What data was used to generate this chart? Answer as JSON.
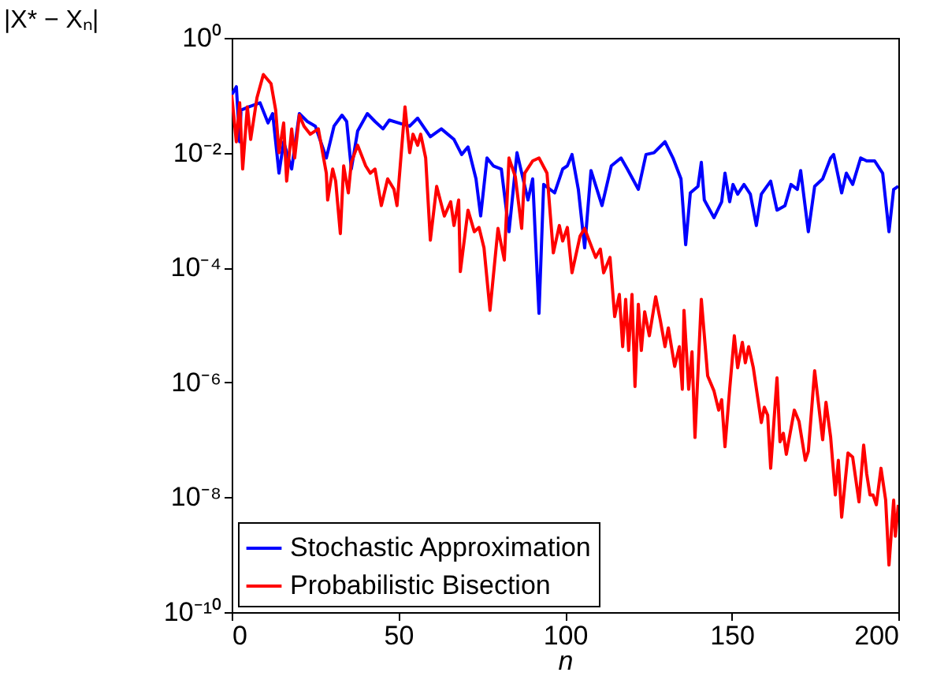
{
  "chart_data": {
    "type": "line",
    "xlabel": "n",
    "ylabel": "|X* − Xₙ|",
    "log": "y",
    "xlim": [
      0,
      200
    ],
    "xticks": [
      0,
      50,
      100,
      150,
      200
    ],
    "ylim": [
      1e-10,
      1
    ],
    "yticks": [
      {
        "value": 1e-10,
        "label": "10⁻¹⁰"
      },
      {
        "value": 1e-08,
        "label": "10⁻⁸"
      },
      {
        "value": 1e-06,
        "label": "10⁻⁶"
      },
      {
        "value": 0.0001,
        "label": "10⁻⁴"
      },
      {
        "value": 0.01,
        "label": "10⁻²"
      },
      {
        "value": 1,
        "label": "10⁰"
      }
    ],
    "legend": "bottom left",
    "series": [
      {
        "name": "Stochastic Approximation",
        "color": "#0000ff",
        "x": [
          0,
          1.4,
          2.4,
          2.8,
          5.2,
          8.5,
          10.9,
          12.3,
          14.2,
          15.6,
          18,
          20.3,
          22.7,
          25.1,
          28.4,
          30.7,
          33.1,
          34.5,
          35.9,
          37.8,
          40.7,
          43,
          45.4,
          47.3,
          50.1,
          53.4,
          55.8,
          59.6,
          62.9,
          66.7,
          69,
          70.9,
          73.3,
          74.7,
          76.6,
          78.5,
          80.9,
          83.2,
          85.6,
          88.9,
          90.3,
          92.2,
          93.6,
          96.9,
          99.3,
          100.7,
          102.1,
          104,
          105.9,
          107.8,
          111.1,
          113.9,
          116.8,
          118.7,
          122,
          124.3,
          126.7,
          130,
          132.4,
          134.8,
          136.2,
          137.6,
          139.9,
          140.9,
          141.8,
          144.7,
          147,
          148,
          149.4,
          150.4,
          151.8,
          153.7,
          155.6,
          157.4,
          158.9,
          161.7,
          163.6,
          166,
          167.8,
          169.7,
          170.7,
          173,
          174.9,
          177.3,
          179.7,
          180.6,
          183,
          184.4,
          186.3,
          188.7,
          190.5,
          192.9,
          195.3,
          197.2,
          198.6,
          200
        ],
        "values": [
          0.102,
          0.141,
          0.0155,
          0.055,
          0.063,
          0.074,
          0.033,
          0.048,
          0.0044,
          0.0155,
          0.0052,
          0.048,
          0.035,
          0.029,
          0.0081,
          0.029,
          0.045,
          0.035,
          0.0052,
          0.024,
          0.048,
          0.035,
          0.026,
          0.037,
          0.033,
          0.029,
          0.04,
          0.019,
          0.026,
          0.017,
          0.0093,
          0.0126,
          0.0035,
          0.00079,
          0.0081,
          0.0059,
          0.0052,
          0.00042,
          0.01,
          0.0015,
          0.0035,
          1.6e-05,
          0.0028,
          0.002,
          0.0052,
          0.0059,
          0.0093,
          0.0023,
          0.00022,
          0.0049,
          0.0012,
          0.0059,
          0.0081,
          0.0052,
          0.0023,
          0.0093,
          0.01,
          0.0155,
          0.0081,
          0.0035,
          0.00025,
          0.002,
          0.0026,
          0.0068,
          0.0015,
          0.00074,
          0.0014,
          0.0044,
          0.0014,
          0.0028,
          0.0019,
          0.0028,
          0.0019,
          0.00054,
          0.0019,
          0.0032,
          0.001,
          0.0012,
          0.0028,
          0.0023,
          0.0049,
          0.00042,
          0.0026,
          0.0035,
          0.0081,
          0.0093,
          0.002,
          0.0044,
          0.0028,
          0.0081,
          0.0072,
          0.0072,
          0.0044,
          0.00042,
          0.0023,
          0.0026
        ]
      },
      {
        "name": "Probabilistic Bisection",
        "color": "#ff0000",
        "x": [
          0,
          1.4,
          2.4,
          3.3,
          4.7,
          5.7,
          7.6,
          9.5,
          11.8,
          13.2,
          14.2,
          15.6,
          16.5,
          18,
          18.9,
          20.3,
          21.7,
          23.6,
          26,
          28.4,
          28.8,
          30.3,
          31.2,
          32.6,
          33.6,
          35,
          35.9,
          37.8,
          40.2,
          41.6,
          43,
          44.9,
          46.8,
          48.7,
          49.6,
          52,
          53.4,
          54.4,
          55.8,
          56.7,
          58.2,
          59.6,
          61.5,
          63.8,
          65.7,
          66.7,
          68.1,
          68.6,
          70.9,
          72.8,
          74.2,
          75.7,
          77.5,
          79.9,
          81.8,
          83.2,
          85.1,
          87,
          87.9,
          90.3,
          92.2,
          94.6,
          96.5,
          98.3,
          99.3,
          100.7,
          102.1,
          104.5,
          105.9,
          107.3,
          109.2,
          110.6,
          111.6,
          113.5,
          114.9,
          116.3,
          117.3,
          118.2,
          119.1,
          120.1,
          121,
          122,
          122.9,
          123.9,
          125.3,
          127.2,
          128.6,
          130,
          131,
          132.9,
          134.3,
          135.2,
          135.7,
          137.1,
          138.1,
          139,
          140.9,
          142.8,
          144.7,
          146.1,
          147,
          148,
          149.4,
          150.8,
          151.8,
          153.2,
          154.1,
          155.1,
          156.5,
          158.9,
          159.8,
          160.8,
          161.7,
          163.6,
          164.5,
          165.5,
          166.4,
          168.8,
          170.2,
          172.1,
          173,
          174.9,
          177.3,
          178.3,
          179.7,
          181.1,
          182,
          183,
          184.9,
          186.3,
          188.2,
          189.6,
          190.5,
          191.5,
          192.4,
          193.4,
          194.8,
          196.2,
          197.2,
          198.6,
          199.1,
          200
        ],
        "values": [
          0.102,
          0.0155,
          0.074,
          0.0052,
          0.063,
          0.017,
          0.091,
          0.23,
          0.16,
          0.055,
          0.01,
          0.033,
          0.0032,
          0.026,
          0.0081,
          0.045,
          0.029,
          0.021,
          0.026,
          0.0044,
          0.0015,
          0.0052,
          0.0032,
          0.00039,
          0.0059,
          0.002,
          0.0068,
          0.0135,
          0.0059,
          0.0044,
          0.0052,
          0.0012,
          0.0035,
          0.0023,
          0.0012,
          0.063,
          0.01,
          0.021,
          0.0135,
          0.021,
          0.0081,
          0.0003,
          0.0026,
          0.00079,
          0.0014,
          0.00054,
          0.0015,
          8.5e-05,
          0.001,
          0.00042,
          0.0005,
          0.00022,
          1.8e-05,
          0.00048,
          0.000135,
          0.0081,
          0.0038,
          0.00048,
          0.0044,
          0.0072,
          0.0081,
          0.0044,
          0.00018,
          0.00054,
          0.00029,
          0.0005,
          8.1e-05,
          0.00035,
          0.00048,
          0.00029,
          0.00015,
          0.00021,
          8.1e-05,
          0.00015,
          1.4e-05,
          3.4e-05,
          4.2e-06,
          2.8e-05,
          3.6e-06,
          3.4e-05,
          8.5e-07,
          2.3e-05,
          3.6e-06,
          1.7e-05,
          6.5e-06,
          3.1e-05,
          1.2e-05,
          4.2e-06,
          8.9e-06,
          1.9e-06,
          4.2e-06,
          7.6e-07,
          1.8e-05,
          7.6e-07,
          3.4e-06,
          1.1e-07,
          2.8e-05,
          1.3e-06,
          7.1e-07,
          3.3e-07,
          5e-07,
          7.6e-08,
          7.6e-07,
          6.5e-06,
          1.8e-06,
          5e-06,
          2.2e-06,
          4.2e-06,
          1.8e-06,
          2e-07,
          3.7e-07,
          2.7e-07,
          3.2e-08,
          1.2e-06,
          9.3e-08,
          1.3e-07,
          5.6e-08,
          3.3e-07,
          2.1e-07,
          4.4e-08,
          6.3e-08,
          1.6e-06,
          1e-07,
          4.5e-07,
          1.1e-07,
          1.1e-08,
          4.4e-08,
          4.5e-09,
          5.9e-08,
          5e-08,
          8.3e-09,
          8.1e-08,
          2.6e-08,
          1.1e-08,
          1.1e-08,
          7.4e-09,
          3.2e-08,
          8.9e-09,
          6.6e-10,
          8.9e-09,
          2.1e-09,
          7.4e-09
        ]
      }
    ]
  }
}
